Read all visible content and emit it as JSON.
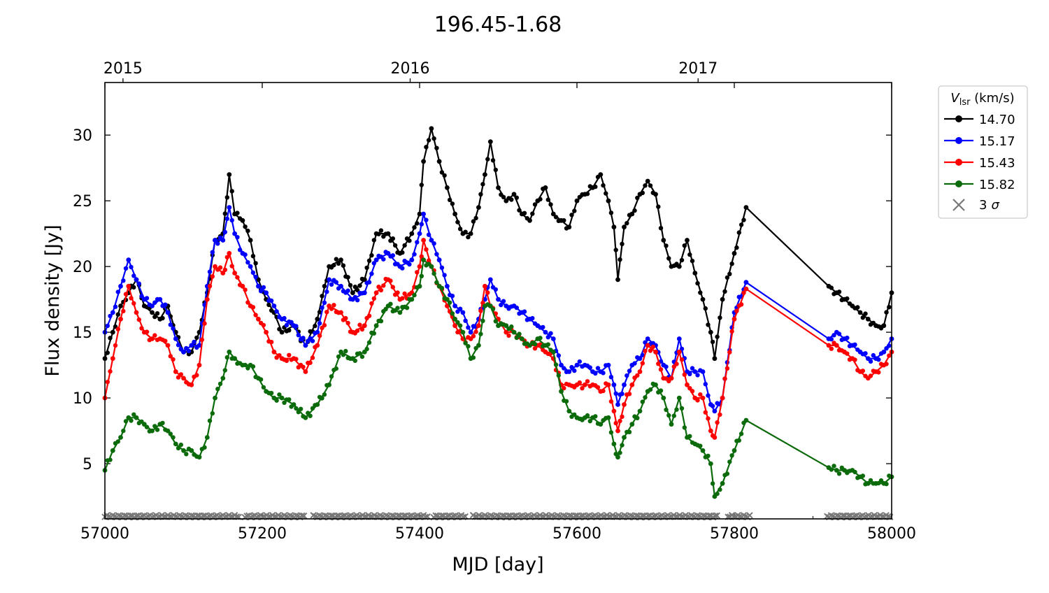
{
  "chart_data": {
    "type": "line",
    "title": "196.45-1.68",
    "xlabel": "MJD [day]",
    "ylabel": "Flux density [Jy]",
    "xlim": [
      57000,
      58000
    ],
    "ylim": [
      0.8,
      34
    ],
    "xticks": [
      57000,
      57200,
      57400,
      57600,
      57800,
      58000
    ],
    "xtick_labels": [
      "57000",
      "57200",
      "57400",
      "57600",
      "57800",
      "58000"
    ],
    "yticks": [
      5,
      10,
      15,
      20,
      25,
      30
    ],
    "ytick_labels": [
      "5",
      "10",
      "15",
      "20",
      "25",
      "30"
    ],
    "top_axis": {
      "ticks": [
        57023,
        57388,
        57754
      ],
      "labels": [
        "2015",
        "2016",
        "2017"
      ]
    },
    "legend": {
      "title": "V",
      "title_sub": "lsr",
      "title_unit": " (km/s)",
      "position": "outside-top-right",
      "entries": [
        "14.70",
        "15.17",
        "15.43",
        "15.82",
        "3 σ"
      ],
      "sigma_label": "3",
      "sigma_symbol": "σ"
    },
    "grid": false,
    "series": [
      {
        "name": "14.70",
        "color": "#000000",
        "x": [
          57000,
          57010,
          57020,
          57030,
          57040,
          57050,
          57060,
          57070,
          57080,
          57090,
          57100,
          57110,
          57120,
          57130,
          57140,
          57150,
          57158,
          57165,
          57175,
          57185,
          57195,
          57205,
          57215,
          57225,
          57240,
          57255,
          57270,
          57285,
          57300,
          57315,
          57330,
          57345,
          57360,
          57375,
          57390,
          57400,
          57405,
          57415,
          57425,
          57435,
          57445,
          57455,
          57465,
          57475,
          57483,
          57490,
          57500,
          57510,
          57520,
          57530,
          57540,
          57550,
          57560,
          57570,
          57580,
          57590,
          57600,
          57610,
          57620,
          57630,
          57640,
          57647,
          57652,
          57660,
          57670,
          57680,
          57690,
          57700,
          57710,
          57720,
          57730,
          57740,
          57750,
          57760,
          57770,
          57775,
          57785,
          57800,
          57815,
          57920,
          57930,
          57940,
          57950,
          57960,
          57970,
          57980,
          57990,
          58000
        ],
        "y": [
          13,
          15,
          17,
          18,
          19,
          17,
          16.5,
          16,
          17,
          15,
          13.5,
          13.5,
          15,
          18,
          22,
          22.5,
          27,
          24,
          23.5,
          22,
          19,
          17.5,
          16.5,
          15,
          15.5,
          14,
          16,
          20,
          20.5,
          18,
          19,
          22.5,
          22.5,
          21,
          22.5,
          24,
          28,
          30.5,
          28,
          26,
          24,
          22.5,
          22.5,
          24.5,
          27,
          29.5,
          26,
          25,
          25.5,
          24,
          23.5,
          25,
          26,
          24,
          23.5,
          23,
          25,
          25.5,
          26,
          27,
          25,
          23,
          19,
          23,
          24,
          25.5,
          26.5,
          25.5,
          22,
          20,
          20,
          22,
          19.5,
          17.5,
          15,
          13,
          17.5,
          21,
          24.5,
          18.5,
          18,
          17.5,
          17,
          16.5,
          16,
          15.5,
          15.5,
          18
        ]
      },
      {
        "name": "15.17",
        "color": "#0000ff",
        "x": [
          57000,
          57010,
          57020,
          57030,
          57040,
          57050,
          57060,
          57070,
          57080,
          57090,
          57100,
          57110,
          57120,
          57130,
          57140,
          57150,
          57158,
          57165,
          57175,
          57185,
          57195,
          57205,
          57215,
          57225,
          57240,
          57255,
          57270,
          57285,
          57300,
          57315,
          57330,
          57345,
          57360,
          57375,
          57390,
          57400,
          57405,
          57415,
          57425,
          57435,
          57445,
          57455,
          57465,
          57475,
          57483,
          57490,
          57500,
          57510,
          57520,
          57530,
          57540,
          57550,
          57560,
          57570,
          57580,
          57590,
          57600,
          57610,
          57620,
          57630,
          57640,
          57647,
          57652,
          57660,
          57670,
          57680,
          57690,
          57700,
          57710,
          57720,
          57730,
          57740,
          57750,
          57760,
          57770,
          57775,
          57785,
          57800,
          57815,
          57920,
          57930,
          57940,
          57950,
          57960,
          57970,
          57980,
          57990,
          58000
        ],
        "y": [
          15,
          16.5,
          18.5,
          20.5,
          19,
          17.5,
          17,
          17.5,
          16.5,
          14.5,
          13.5,
          14,
          14,
          18.5,
          22,
          22,
          24.5,
          22.5,
          21,
          20,
          18.5,
          18,
          17,
          16,
          15.5,
          14,
          15,
          19,
          18.5,
          17.5,
          18,
          20.5,
          21,
          20,
          20.5,
          22.5,
          24,
          22,
          20.5,
          18.5,
          17,
          16.5,
          15,
          16,
          17.5,
          19,
          17.5,
          17,
          17,
          16.5,
          16,
          15.5,
          15,
          14.5,
          12.5,
          12,
          12.5,
          12.5,
          12,
          12,
          12.5,
          11,
          9.5,
          11,
          12.5,
          13,
          14.5,
          14,
          12.5,
          11.5,
          14.5,
          12,
          12,
          12,
          9.5,
          9,
          10,
          16.5,
          18.8,
          14.5,
          15,
          14.5,
          14,
          13.5,
          13,
          13,
          13.5,
          14.5
        ]
      },
      {
        "name": "15.43",
        "color": "#ff0000",
        "x": [
          57000,
          57010,
          57020,
          57030,
          57040,
          57050,
          57060,
          57070,
          57080,
          57090,
          57100,
          57110,
          57120,
          57130,
          57140,
          57150,
          57158,
          57165,
          57175,
          57185,
          57195,
          57205,
          57215,
          57225,
          57240,
          57255,
          57270,
          57285,
          57300,
          57315,
          57330,
          57345,
          57360,
          57375,
          57390,
          57400,
          57405,
          57415,
          57425,
          57435,
          57445,
          57455,
          57465,
          57475,
          57483,
          57490,
          57500,
          57510,
          57520,
          57530,
          57540,
          57550,
          57560,
          57570,
          57580,
          57590,
          57600,
          57610,
          57620,
          57630,
          57640,
          57647,
          57652,
          57660,
          57670,
          57680,
          57690,
          57700,
          57710,
          57720,
          57730,
          57740,
          57750,
          57760,
          57770,
          57775,
          57785,
          57800,
          57815,
          57920,
          57930,
          57940,
          57950,
          57960,
          57970,
          57980,
          57990,
          58000
        ],
        "y": [
          10,
          13,
          16,
          18.5,
          16.5,
          15,
          14.5,
          14.5,
          14,
          12,
          11.5,
          11,
          12.5,
          17.5,
          20,
          19.5,
          21,
          19.5,
          18.5,
          17,
          16,
          15,
          13.5,
          13,
          13,
          12,
          14,
          17,
          16.5,
          15,
          15.5,
          18,
          19,
          17.5,
          18,
          20,
          22,
          20,
          18.5,
          17,
          15.5,
          14.5,
          14.5,
          15.5,
          18.5,
          17,
          16,
          15,
          15,
          14.5,
          14,
          14,
          13.5,
          13,
          11,
          11,
          11,
          11,
          11,
          10.5,
          11,
          9,
          7.5,
          9.5,
          11,
          12,
          14,
          13.5,
          11.5,
          11.5,
          13.5,
          11,
          10,
          10,
          7.5,
          7,
          10,
          16,
          18.3,
          14,
          14,
          13.5,
          13,
          12,
          11.5,
          12,
          12.5,
          13.5
        ]
      },
      {
        "name": "15.82",
        "color": "#0b6b0b",
        "x": [
          57000,
          57010,
          57020,
          57030,
          57040,
          57050,
          57060,
          57070,
          57080,
          57090,
          57100,
          57110,
          57120,
          57130,
          57140,
          57150,
          57158,
          57165,
          57175,
          57185,
          57195,
          57205,
          57215,
          57225,
          57240,
          57255,
          57270,
          57285,
          57300,
          57315,
          57330,
          57345,
          57360,
          57375,
          57390,
          57400,
          57405,
          57415,
          57425,
          57435,
          57445,
          57455,
          57465,
          57475,
          57483,
          57490,
          57500,
          57510,
          57520,
          57530,
          57540,
          57550,
          57560,
          57570,
          57580,
          57590,
          57600,
          57610,
          57620,
          57630,
          57640,
          57647,
          57652,
          57660,
          57670,
          57680,
          57690,
          57700,
          57710,
          57720,
          57730,
          57740,
          57750,
          57760,
          57770,
          57775,
          57785,
          57800,
          57815,
          57920,
          57930,
          57940,
          57950,
          57960,
          57970,
          57980,
          57990,
          58000
        ],
        "y": [
          4.5,
          6,
          7,
          8.5,
          8.5,
          8,
          7.5,
          8,
          7.5,
          6.5,
          6,
          6,
          5.5,
          7,
          10,
          11.5,
          13.5,
          13,
          12.5,
          12.5,
          11.5,
          10.5,
          10,
          10,
          9.5,
          8.5,
          9.5,
          11,
          13.5,
          13,
          13.5,
          15.5,
          17,
          16.5,
          17.5,
          18.5,
          20.5,
          20,
          18.5,
          17.5,
          16,
          15,
          13,
          14,
          17,
          17,
          15.5,
          15.5,
          15,
          14.5,
          14,
          14.5,
          14,
          13.5,
          10.5,
          9,
          8.5,
          8.5,
          8.5,
          8,
          8.5,
          6.5,
          5.5,
          7,
          8,
          9,
          10.5,
          11,
          10,
          8,
          10,
          7,
          6.5,
          6,
          5,
          2.5,
          3.5,
          6,
          8.3,
          4.7,
          4.5,
          4.5,
          4.5,
          4,
          3.5,
          3.5,
          3.5,
          4
        ]
      }
    ],
    "threshold_3sigma": {
      "name": "3 σ",
      "color": "#777777",
      "level": 1.0,
      "segments": [
        [
          57000,
          57170
        ],
        [
          57178,
          57255
        ],
        [
          57265,
          57410
        ],
        [
          57418,
          57460
        ],
        [
          57468,
          57780
        ],
        [
          57792,
          57820
        ],
        [
          57918,
          58000
        ]
      ]
    }
  }
}
